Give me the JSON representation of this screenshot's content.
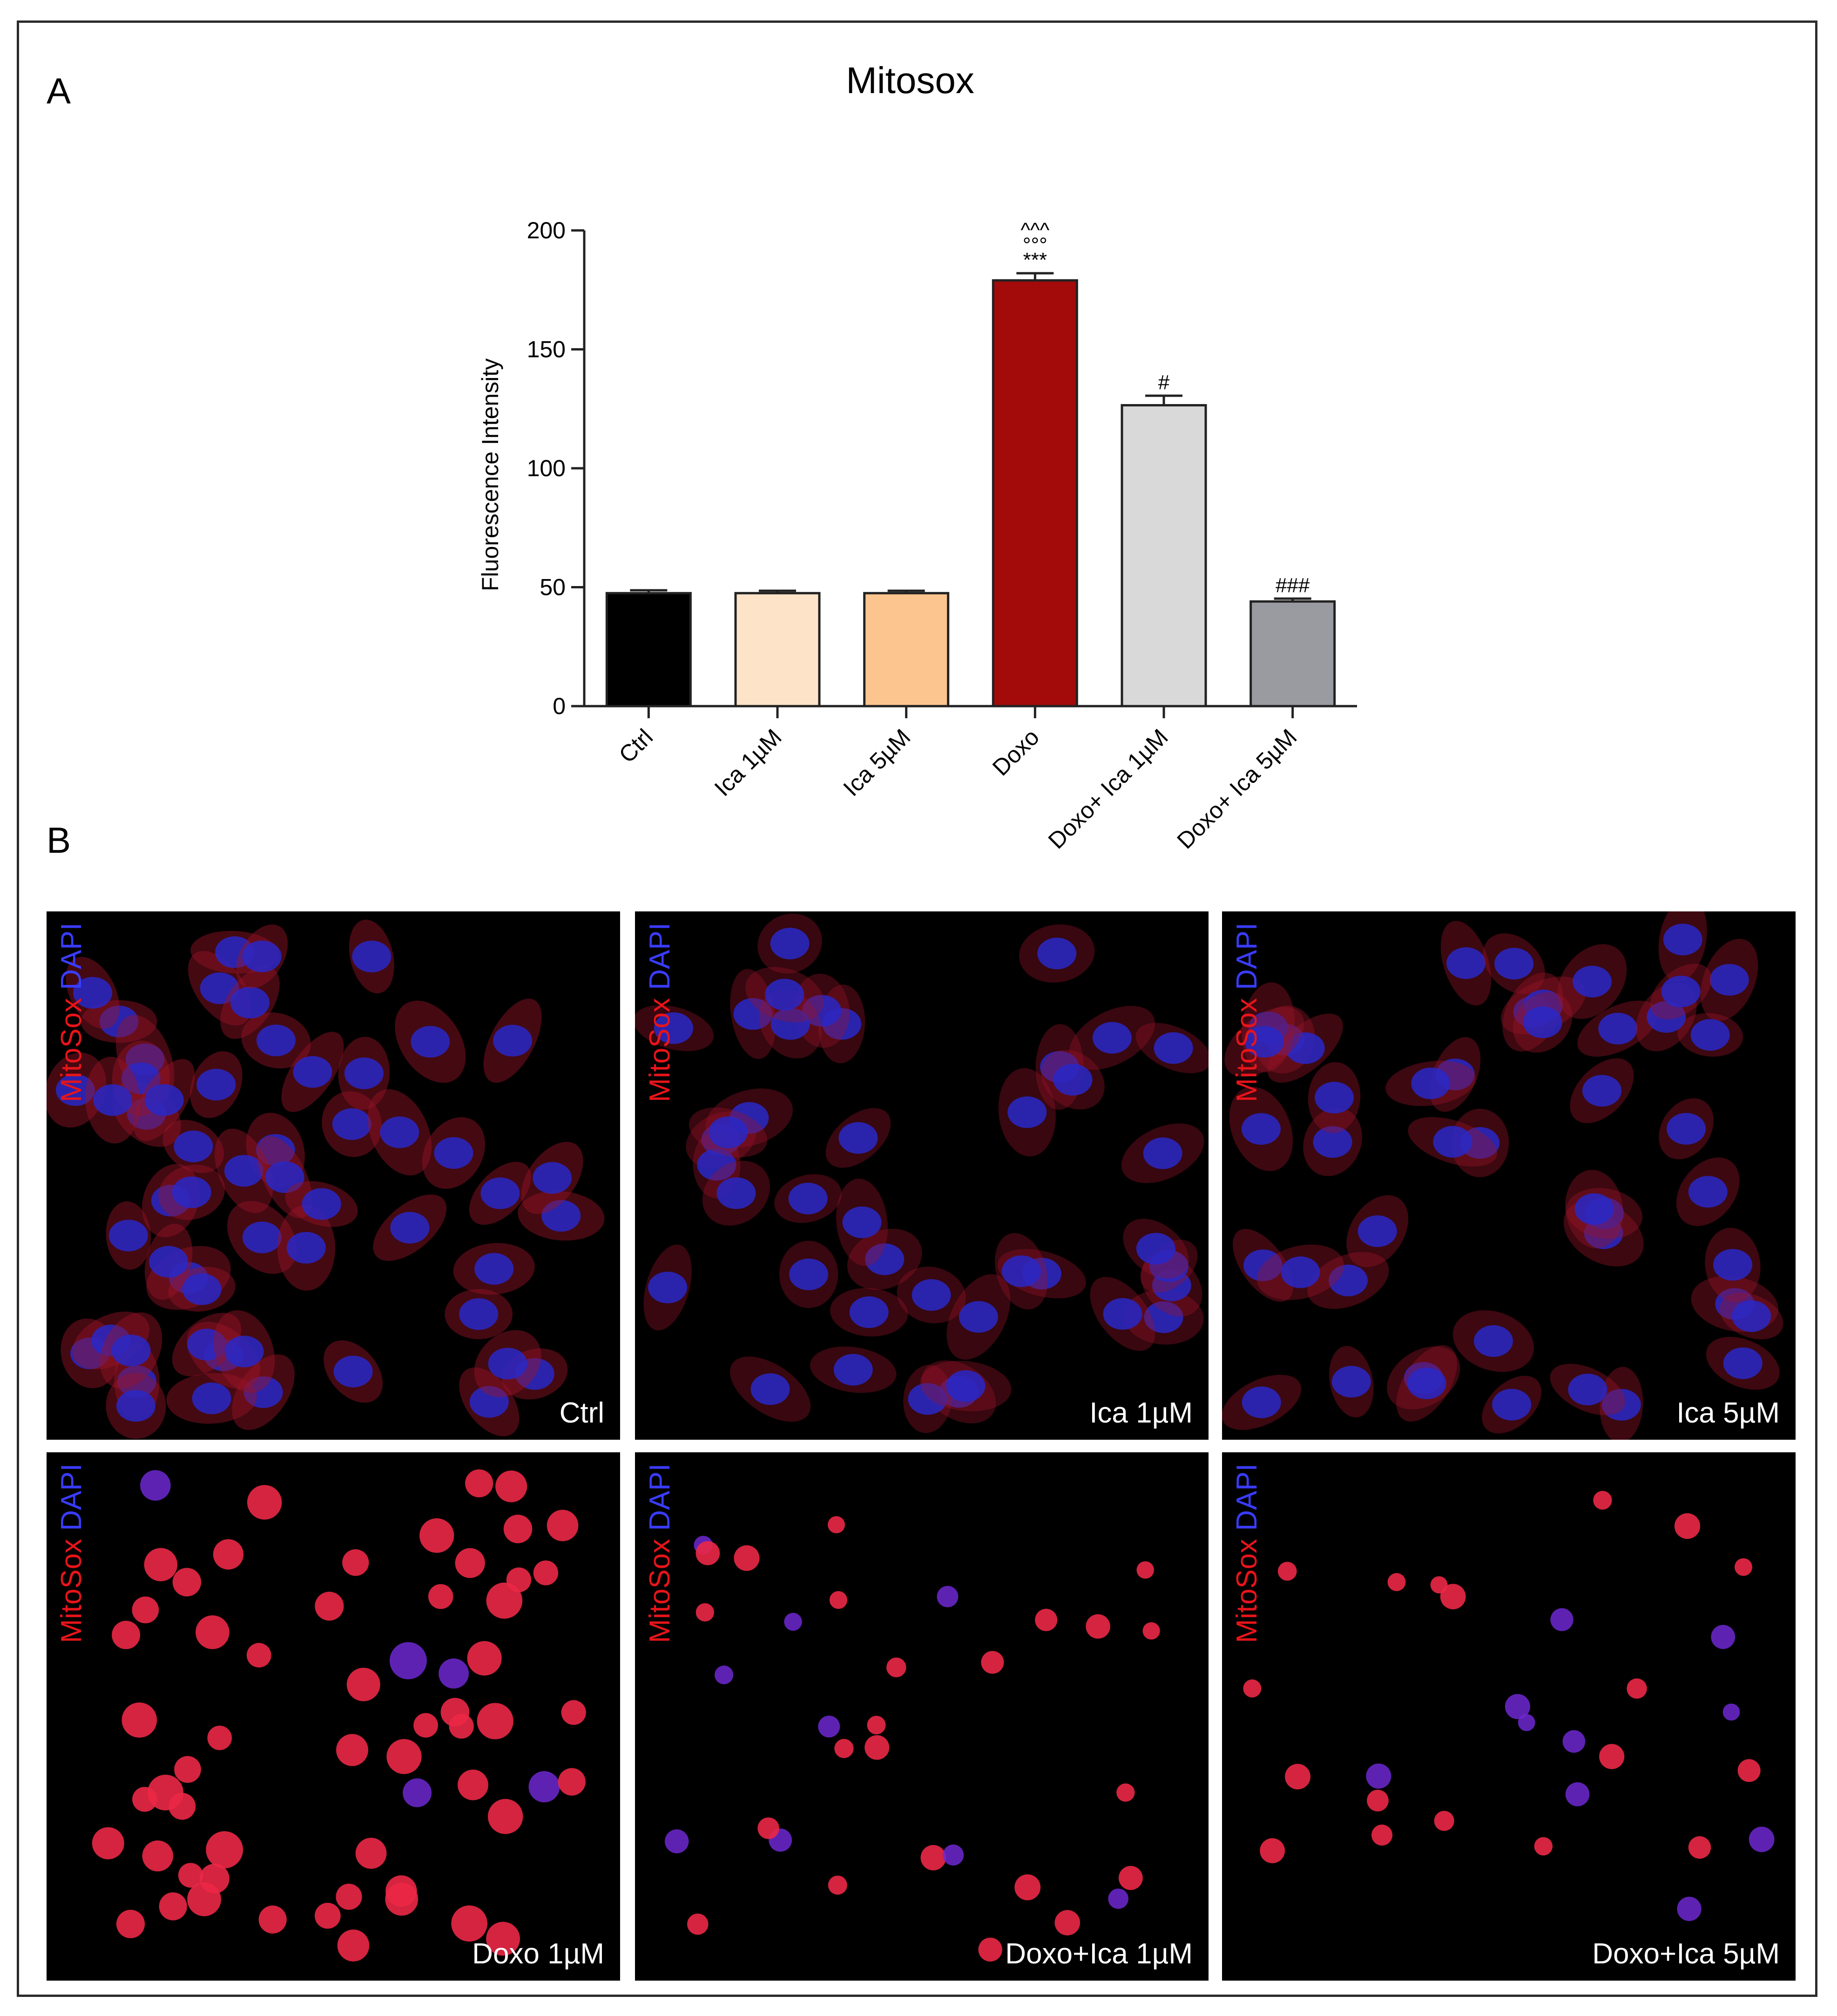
{
  "panel_a_letter": "A",
  "panel_b_letter": "B",
  "chart_data": {
    "type": "bar",
    "title": "Mitosox",
    "xlabel": "",
    "ylabel": "Fluorescence Intensity",
    "ylim": [
      0,
      200
    ],
    "yticks": [
      0,
      50,
      100,
      150,
      200
    ],
    "grid": false,
    "categories": [
      "Ctrl",
      "Ica 1µM",
      "Ica 5µM",
      "Doxo",
      "Doxo+ Ica 1µM",
      "Doxo+ Ica 5µM"
    ],
    "values": [
      47.5,
      47.5,
      47.5,
      179,
      126.5,
      44
    ],
    "errors": [
      1.2,
      1.0,
      1.0,
      3.0,
      4.0,
      1.2
    ],
    "colors": [
      "#000000",
      "#fde3c8",
      "#fcc48f",
      "#a30a0a",
      "#d9d9d9",
      "#9a9aa1"
    ],
    "annotations": [
      {
        "category": "Doxo",
        "lines": [
          "^^^",
          "°°°",
          "***"
        ]
      },
      {
        "category": "Doxo+ Ica 1µM",
        "lines": [
          "#"
        ]
      },
      {
        "category": "Doxo+ Ica 5µM",
        "lines": [
          "###"
        ]
      }
    ]
  },
  "micrographs": {
    "stain_red": "MitoSox",
    "stain_blue": "DAPI",
    "panels": [
      {
        "label": "Ctrl"
      },
      {
        "label": "Ica 1µM"
      },
      {
        "label": "Ica 5µM"
      },
      {
        "label": "Doxo 1µM"
      },
      {
        "label": "Doxo+Ica 1µM"
      },
      {
        "label": "Doxo+Ica 5µM"
      }
    ]
  }
}
